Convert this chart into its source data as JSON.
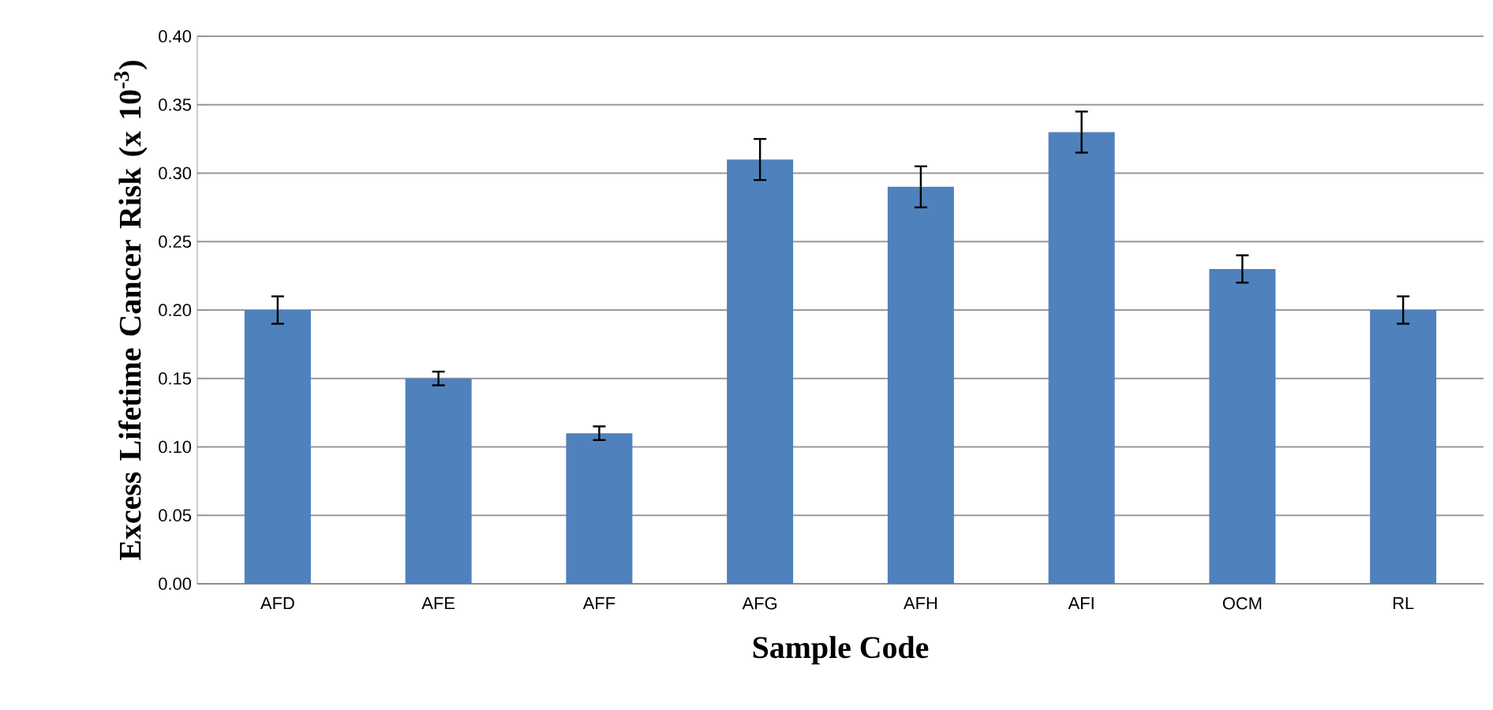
{
  "chart_data": {
    "type": "bar",
    "categories": [
      "AFD",
      "AFE",
      "AFF",
      "AFG",
      "AFH",
      "AFI",
      "OCM",
      "RL"
    ],
    "values": [
      0.2,
      0.15,
      0.11,
      0.31,
      0.29,
      0.33,
      0.23,
      0.2
    ],
    "errors": [
      0.01,
      0.005,
      0.005,
      0.015,
      0.015,
      0.015,
      0.01,
      0.01
    ],
    "color": "#4f81bd",
    "xlabel": "Sample Code",
    "ylabel": "Excess Lifetime Cancer Risk (x 10$^{-3}$)",
    "ylim": [
      0,
      0.4
    ],
    "yticks": [
      {
        "value": 0,
        "label": "0.00"
      },
      {
        "value": 0.05,
        "label": "0.05"
      },
      {
        "value": 0.1,
        "label": "0.10"
      },
      {
        "value": 0.15,
        "label": "0.15"
      },
      {
        "value": 0.2,
        "label": "0.20"
      },
      {
        "value": 0.25,
        "label": "0.25"
      },
      {
        "value": 0.3,
        "label": "0.30"
      },
      {
        "value": 0.35,
        "label": "0.35"
      },
      {
        "value": 0.4,
        "label": "0.40"
      }
    ],
    "grid": "y"
  }
}
